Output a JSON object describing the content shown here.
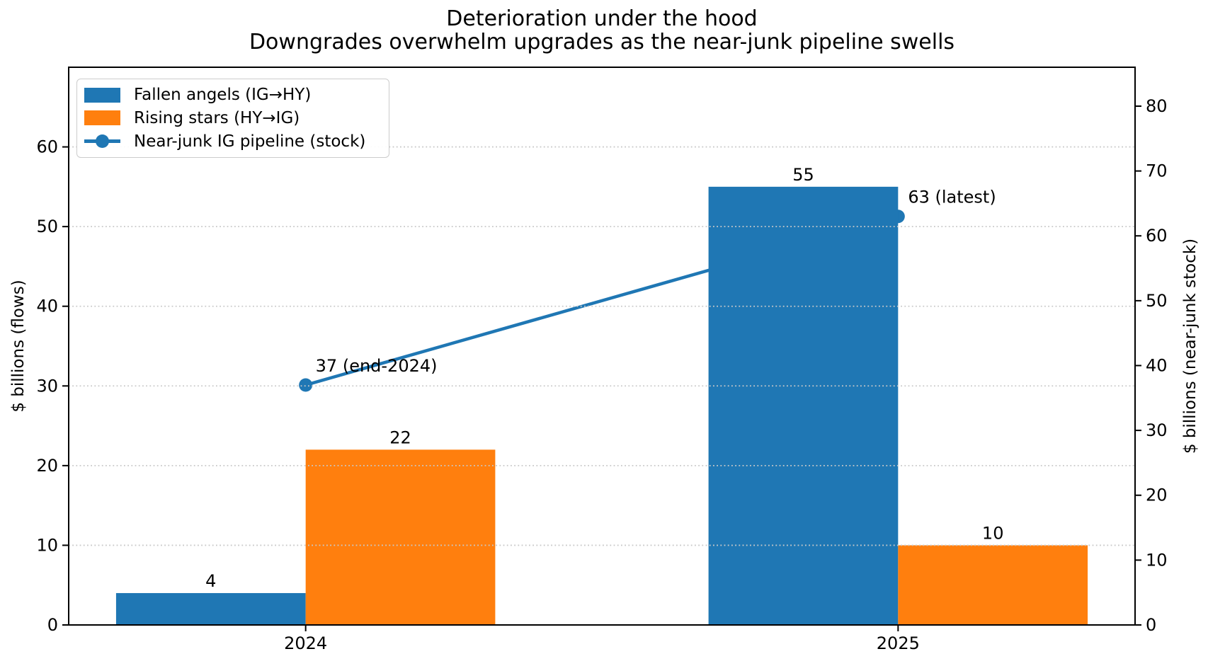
{
  "figure": {
    "title_line1": "Deterioration under the hood",
    "title_line2": "Downgrades overwhelm upgrades as the near-junk pipeline swells"
  },
  "chart_data": {
    "type": "bar+line",
    "categories": [
      "2024",
      "2025"
    ],
    "bar_series": [
      {
        "name": "Fallen angels (IG→HY)",
        "values": [
          4,
          55
        ],
        "value_labels": [
          "4",
          "55"
        ],
        "color": "#1f77b4",
        "axis": "left"
      },
      {
        "name": "Rising stars (HY→IG)",
        "values": [
          22,
          10
        ],
        "value_labels": [
          "22",
          "10"
        ],
        "color": "#ff7f0e",
        "axis": "left"
      }
    ],
    "line_series": {
      "name": "Near-junk IG pipeline (stock)",
      "values": [
        37,
        63
      ],
      "annotations": [
        "37 (end-2024)",
        "63 (latest)"
      ],
      "color": "#1f77b4",
      "axis": "right",
      "marker": "circle"
    },
    "axes": {
      "left": {
        "label": "$ billions (flows)",
        "ticks": [
          0,
          10,
          20,
          30,
          40,
          50,
          60
        ],
        "range": [
          0,
          70
        ]
      },
      "right": {
        "label": "$ billions (near-junk stock)",
        "ticks": [
          0,
          10,
          20,
          30,
          40,
          50,
          60,
          70,
          80
        ],
        "range": [
          0,
          86
        ]
      },
      "x": {
        "tick_labels": [
          "2024",
          "2025"
        ]
      }
    },
    "grid": {
      "on": true,
      "which": "left-y",
      "style": "dotted",
      "color": "#c9c9c9"
    },
    "legend": {
      "position": "upper-left"
    }
  }
}
